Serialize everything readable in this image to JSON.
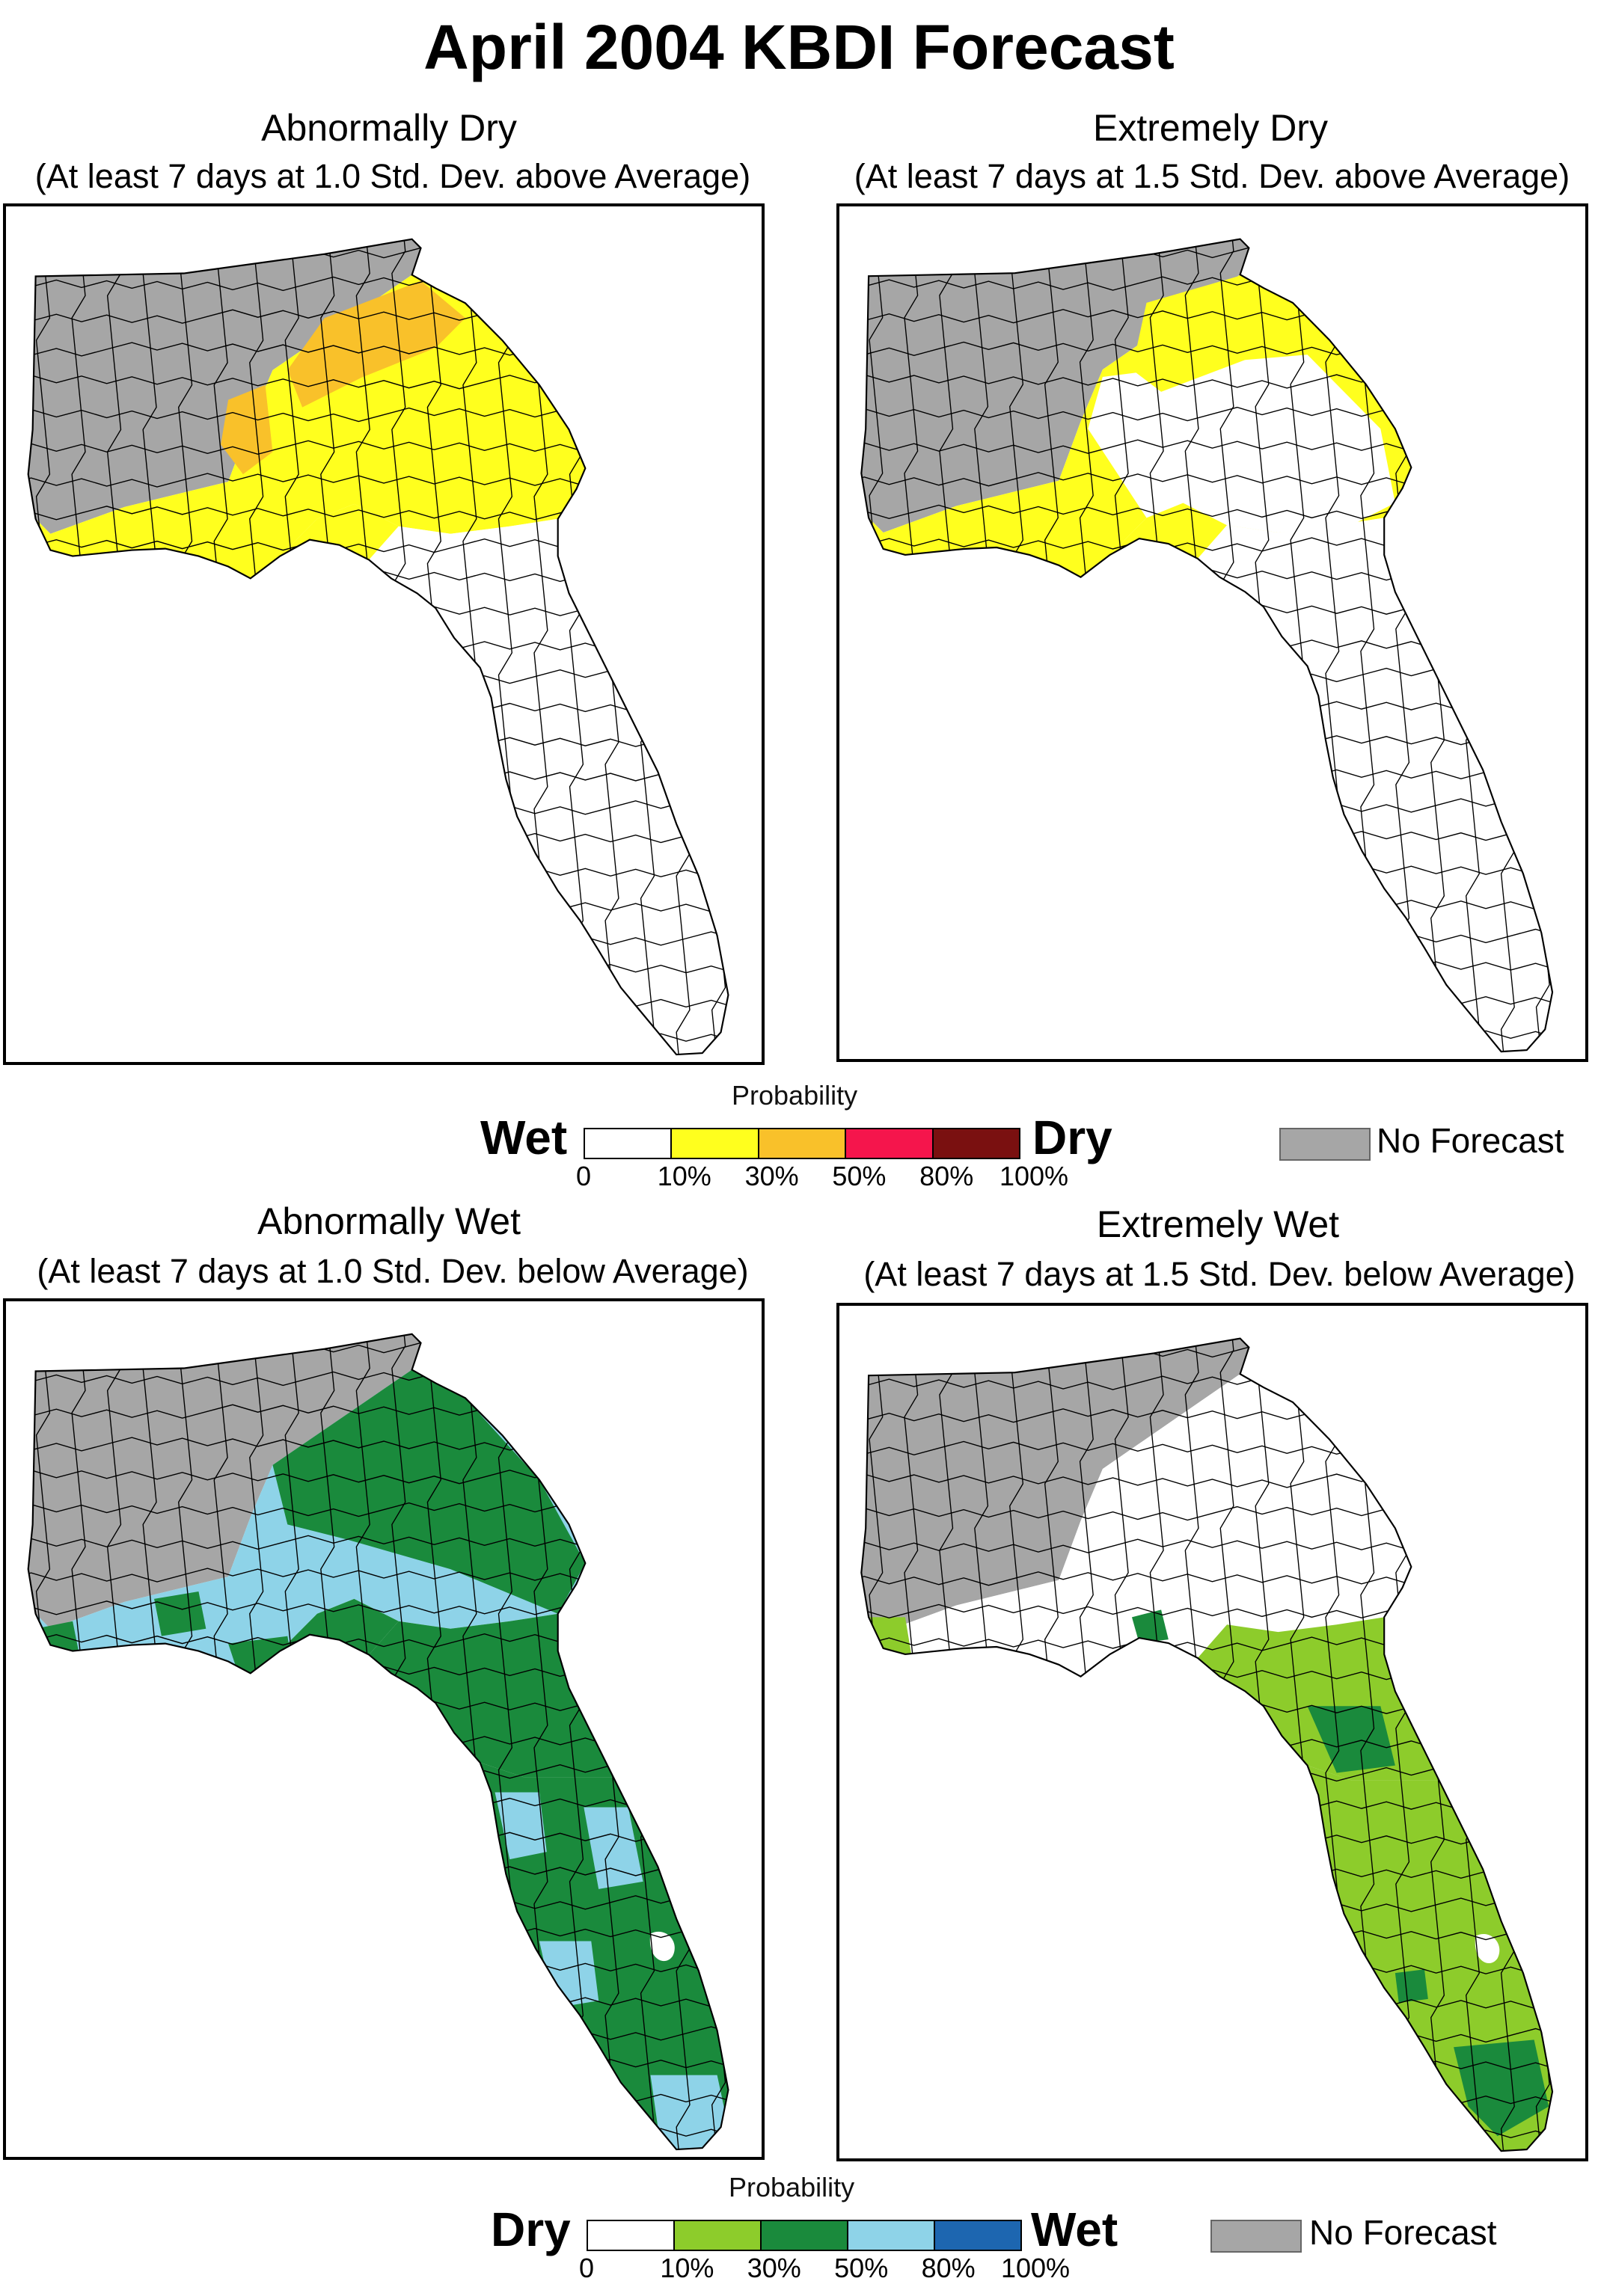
{
  "title": "April 2004 KBDI Forecast",
  "panels": [
    {
      "title": "Abnormally Dry",
      "subtitle": "(At least 7 days at 1.0 Std. Dev. above Average)"
    },
    {
      "title": "Extremely Dry",
      "subtitle": "(At least 7 days at 1.5 Std. Dev. above Average)"
    },
    {
      "title": "Abnormally Wet",
      "subtitle": "(At least 7 days at 1.0 Std. Dev. below Average)"
    },
    {
      "title": "Extremely Wet",
      "subtitle": "(At least 7 days at 1.5 Std. Dev. below Average)"
    }
  ],
  "legend_dry": {
    "probability_label": "Probability",
    "left_label": "Wet",
    "right_label": "Dry",
    "ticks": [
      "0",
      "10%",
      "30%",
      "50%",
      "80%",
      "100%"
    ],
    "colors": [
      "#ffffff",
      "#ffff1e",
      "#f9c12a",
      "#f5154c",
      "#7a1010"
    ],
    "no_forecast": "No Forecast"
  },
  "legend_wet": {
    "probability_label": "Probability",
    "left_label": "Dry",
    "right_label": "Wet",
    "ticks": [
      "0",
      "10%",
      "30%",
      "50%",
      "80%",
      "100%"
    ],
    "colors": [
      "#ffffff",
      "#8dcc2b",
      "#1a8a3c",
      "#8ed3e8",
      "#1d66b0"
    ],
    "no_forecast": "No Forecast"
  },
  "no_forecast_color": "#a6a6a6",
  "region_colors": {
    "abnormally_dry": {
      "north": "#a6a6a6",
      "central": "#ffff1e",
      "band": "#f9c12a",
      "hotspot": "#f5154c",
      "peninsula": "#ffffff"
    },
    "extremely_dry": {
      "north": "#a6a6a6",
      "central": "#ffff1e",
      "east": "#ffffff",
      "peninsula": "#ffffff"
    },
    "abnormally_wet": {
      "north": "#a6a6a6",
      "central": "#8ed3e8",
      "east": "#1a8a3c",
      "peninsula": "#1a8a3c",
      "peninsula_light": "#8ed3e8"
    },
    "extremely_wet": {
      "north": "#a6a6a6",
      "central": "#ffffff",
      "coast": "#8dcc2b",
      "peninsula": "#8dcc2b",
      "dark": "#1a8a3c"
    }
  }
}
